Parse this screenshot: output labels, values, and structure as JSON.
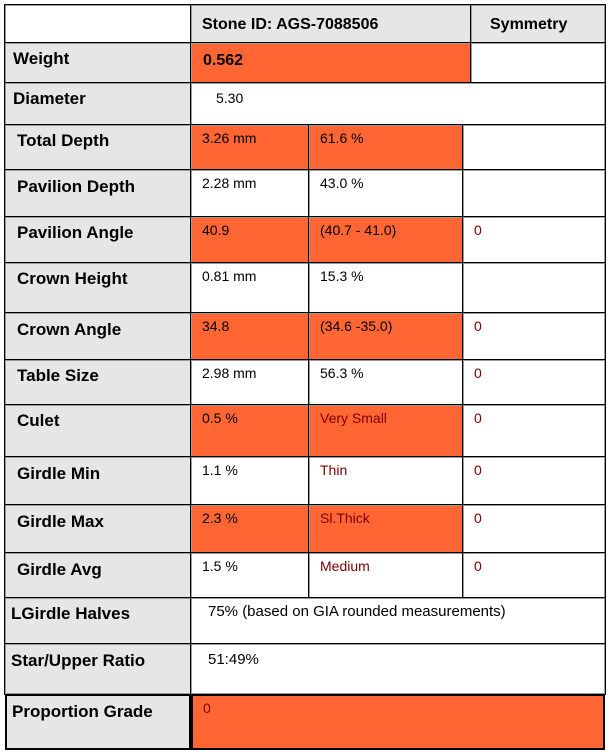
{
  "header": {
    "stone_id": "Stone ID: AGS-7088506",
    "symmetry": "Symmetry"
  },
  "colors": {
    "highlight": "#ff6633",
    "label_bg": "#e6e6e6",
    "score_text": "#7a0000"
  },
  "rows": {
    "weight": {
      "label": "Weight",
      "value": "0.562"
    },
    "diameter": {
      "label": "Diameter",
      "value": "5.30"
    },
    "total_depth": {
      "label": "Total Depth",
      "mm": "3.26 mm",
      "pct": "61.6 %"
    },
    "pavilion_depth": {
      "label": "Pavilion Depth",
      "mm": "2.28 mm",
      "pct": "43.0 %"
    },
    "pavilion_angle": {
      "label": "Pavilion Angle",
      "value": "40.9",
      "range": "(40.7 - 41.0)",
      "score": "0"
    },
    "crown_height": {
      "label": "Crown Height",
      "mm": "0.81 mm",
      "pct": "15.3 %"
    },
    "crown_angle": {
      "label": "Crown Angle",
      "value": "34.8",
      "range": "(34.6 -35.0)",
      "score": "0"
    },
    "table_size": {
      "label": "Table Size",
      "mm": "2.98 mm",
      "pct": "56.3 %",
      "score": "0"
    },
    "culet": {
      "label": "Culet",
      "pct": "0.5 %",
      "desc": "Very Small",
      "score": "0"
    },
    "girdle_min": {
      "label": "Girdle Min",
      "pct": "1.1 %",
      "desc": "Thin",
      "score": "0"
    },
    "girdle_max": {
      "label": "Girdle Max",
      "pct": "2.3 %",
      "desc": "Sl.Thick",
      "score": "0"
    },
    "girdle_avg": {
      "label": "Girdle Avg",
      "pct": "1.5 %",
      "desc": "Medium",
      "score": "0"
    },
    "lgirdle_halves": {
      "label": "LGirdle Halves",
      "value": "75% (based on GIA rounded measurements)"
    },
    "star_upper": {
      "label": "Star/Upper Ratio",
      "value": "51:49%"
    },
    "proportion_grade": {
      "label": "Proportion Grade",
      "value": "0"
    }
  }
}
